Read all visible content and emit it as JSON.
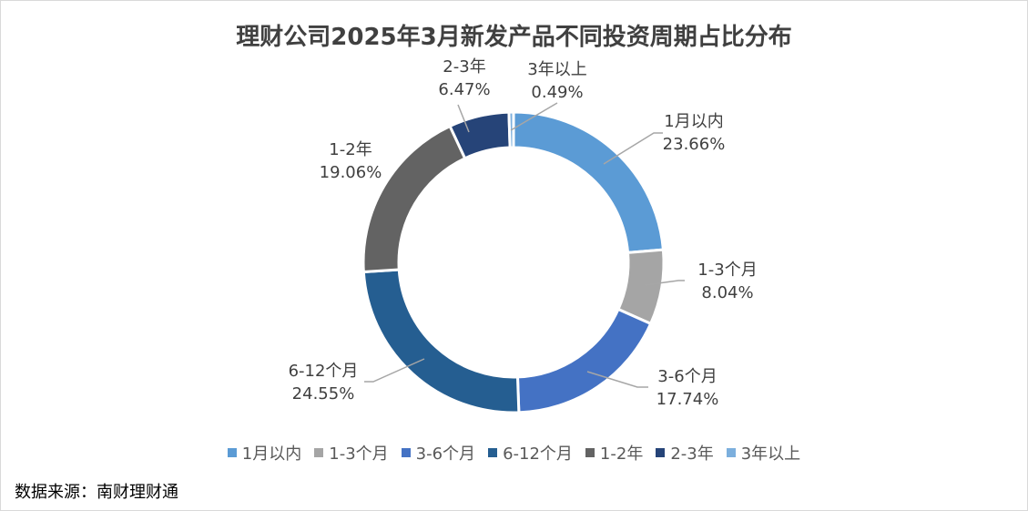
{
  "chart_data": {
    "type": "pie",
    "subtype": "donut",
    "title": "理财公司2025年3月新发产品不同投资周期占比分布",
    "categories": [
      "1月以内",
      "1-3个月",
      "3-6个月",
      "6-12个月",
      "1-2年",
      "2-3年",
      "3年以上"
    ],
    "values": [
      23.66,
      8.04,
      17.74,
      24.55,
      19.06,
      6.47,
      0.49
    ],
    "value_labels": [
      "23.66%",
      "8.04%",
      "17.74%",
      "24.55%",
      "19.06%",
      "6.47%",
      "0.49%"
    ],
    "colors": [
      "#5B9BD5",
      "#A5A5A5",
      "#4472C4",
      "#255E91",
      "#636363",
      "#264478",
      "#7CAFDD"
    ],
    "legend": "bottom",
    "source": "数据来源：南财理财通"
  }
}
